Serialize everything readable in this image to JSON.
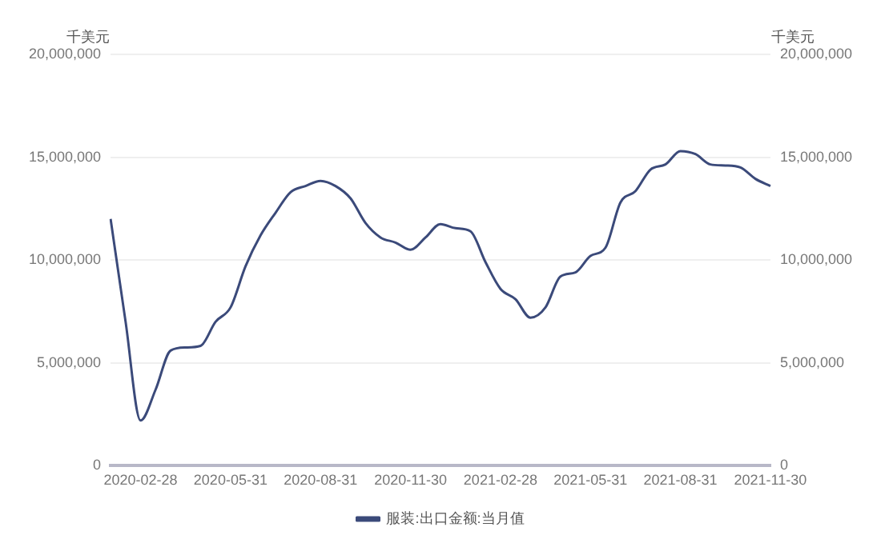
{
  "chart_data": {
    "type": "line",
    "ylabel": "千美元",
    "y2label": "千美元",
    "categories": [
      null,
      null,
      "2020-02-28",
      null,
      null,
      null,
      null,
      null,
      "2020-05-31",
      null,
      null,
      null,
      null,
      null,
      "2020-08-31",
      null,
      null,
      null,
      null,
      null,
      "2020-11-30",
      null,
      null,
      null,
      null,
      null,
      "2021-02-28",
      null,
      null,
      null,
      null,
      null,
      "2021-05-31",
      null,
      null,
      null,
      null,
      null,
      "2021-08-31",
      null,
      null,
      null,
      null,
      null,
      "2021-11-30"
    ],
    "series": [
      {
        "name": "服装:出口金额:当月值",
        "color": "#3b4a7a",
        "values": [
          12000000,
          7000000,
          2200000,
          3700000,
          5600000,
          5750000,
          5830000,
          7000000,
          7700000,
          9700000,
          11200000,
          12300000,
          13300000,
          13600000,
          13850000,
          13600000,
          13000000,
          11800000,
          11100000,
          10850000,
          10500000,
          11100000,
          11750000,
          11550000,
          11400000,
          9900000,
          8600000,
          8100000,
          7200000,
          7700000,
          9200000,
          9400000,
          10200000,
          10600000,
          12800000,
          13350000,
          14400000,
          14650000,
          15300000,
          15150000,
          14650000,
          14600000,
          14500000,
          13950000,
          13600000
        ]
      }
    ],
    "ylim": [
      0,
      20000000
    ],
    "yticks": [
      0,
      {
        "value": 5000000,
        "label": "5,000,000"
      },
      {
        "value": 10000000,
        "label": "10,000,000"
      },
      {
        "value": 15000000,
        "label": "15,000,000"
      },
      {
        "value": 20000000,
        "label": "20,000,000"
      }
    ],
    "y2lim": [
      0,
      20000000
    ],
    "y2ticks": [
      0,
      {
        "value": 5000000,
        "label": "5,000,000"
      },
      {
        "value": 10000000,
        "label": "10,000,000"
      },
      {
        "value": 15000000,
        "label": "15,000,000"
      },
      {
        "value": 20000000,
        "label": "20,000,000"
      }
    ],
    "grid": "y",
    "legend": "bottom",
    "marker": "none",
    "line_style": "solid"
  }
}
